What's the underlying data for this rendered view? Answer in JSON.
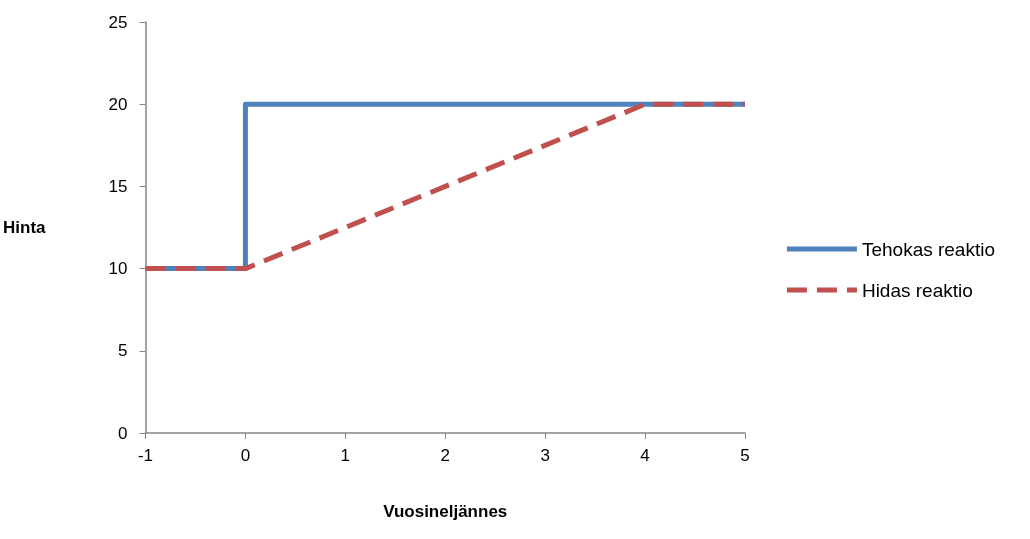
{
  "chart_data": {
    "type": "line",
    "xlabel": "Vuosineljännes",
    "ylabel": "Hinta",
    "xlim": [
      -1,
      5
    ],
    "xticks": [
      -1,
      0,
      1,
      2,
      3,
      4,
      5
    ],
    "ylim": [
      0,
      25
    ],
    "yticks": [
      0,
      5,
      10,
      15,
      20,
      25
    ],
    "grid": false,
    "legend": "right",
    "marker": "none",
    "series": [
      {
        "name": "Tehokas reaktio",
        "color": "#4f81bd",
        "line_style": "solid",
        "x": [
          -1,
          0,
          0,
          5
        ],
        "values": [
          10,
          10,
          20,
          20
        ]
      },
      {
        "name": "Hidas reaktio",
        "color": "#c0504d",
        "line_style": "dashed",
        "x": [
          -1,
          0,
          4,
          5
        ],
        "values": [
          10,
          10,
          20,
          20
        ]
      }
    ]
  }
}
